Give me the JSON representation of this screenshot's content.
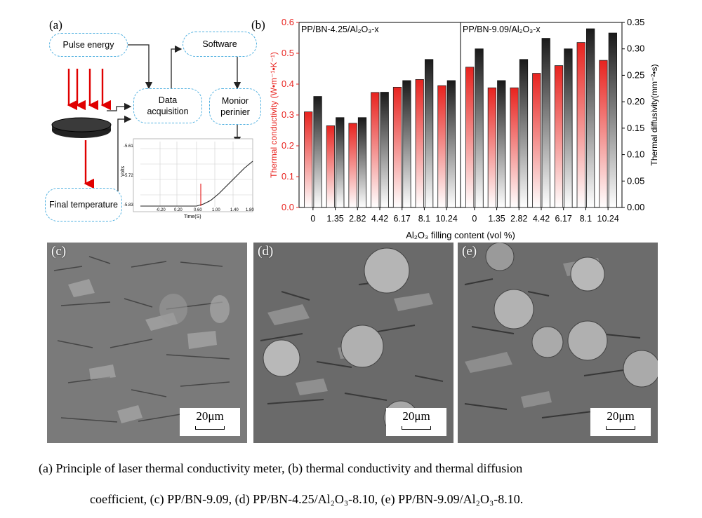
{
  "panel_a": {
    "label": "(a)",
    "boxes": {
      "pulse_energy": "Pulse energy",
      "data_acquisition_1": "Data",
      "data_acquisition_2": "acquisition",
      "software": "Software",
      "monitor_1": "Monior",
      "monitor_2": "perinier",
      "final_temperature": "Final temperature"
    },
    "inset": {
      "ylabel": "Volts",
      "xlabel": "Time(S)",
      "yticks": [
        "-5.61",
        "-5.72",
        "-5.83"
      ],
      "xticks": [
        "-0.20",
        "0.20",
        "0.60",
        "1.00",
        "1.40",
        "1.80"
      ]
    }
  },
  "panel_b": {
    "label": "(b)"
  },
  "chart_data": {
    "type": "bar",
    "groups": [
      "PP/BN-4.25/Al2O3-x",
      "PP/BN-9.09/Al2O3-x"
    ],
    "group_labels": [
      "PP/BN-4.25/Al₂O₃-x",
      "PP/BN-9.09/Al₂O₃-x"
    ],
    "categories": [
      "0",
      "1.35",
      "2.82",
      "4.42",
      "6.17",
      "8.1",
      "10.24"
    ],
    "xlabel": "Al₂O₃ filling content (vol %)",
    "ylabel_left": "Thermal conductivity (W•m⁻¹•K⁻¹)",
    "ylabel_right": "Thermal diffusivity(mm⁻²•s)",
    "ylim_left": [
      0,
      0.6
    ],
    "ylim_right": [
      0,
      0.35
    ],
    "yticks_left": [
      "0.0",
      "0.1",
      "0.2",
      "0.3",
      "0.4",
      "0.5",
      "0.6"
    ],
    "yticks_right": [
      "0.00",
      "0.05",
      "0.10",
      "0.15",
      "0.20",
      "0.25",
      "0.30",
      "0.35"
    ],
    "colors": {
      "conductivity": "#e8231f",
      "diffusivity": "#1a1a1a",
      "left_axis": "#e8231f"
    },
    "series": [
      {
        "group": 0,
        "conductivity": [
          0.31,
          0.265,
          0.273,
          0.373,
          0.39,
          0.415,
          0.395
        ],
        "diffusivity": [
          0.21,
          0.17,
          0.17,
          0.218,
          0.24,
          0.28,
          0.24
        ]
      },
      {
        "group": 1,
        "conductivity": [
          0.455,
          0.388,
          0.388,
          0.435,
          0.46,
          0.535,
          0.477
        ],
        "diffusivity": [
          0.3,
          0.24,
          0.28,
          0.32,
          0.3,
          0.338,
          0.33
        ]
      }
    ]
  },
  "sem": [
    {
      "label": "(c)",
      "scale": "20μm"
    },
    {
      "label": "(d)",
      "scale": "20μm"
    },
    {
      "label": "(e)",
      "scale": "20μm"
    }
  ],
  "caption": {
    "line1": "(a)  Principle of laser thermal conductivity meter, (b) thermal conductivity and thermal diffusion",
    "line2": "coefficient, (c) PP/BN-9.09, (d) PP/BN-4.25/Al₂O₃-8.10, (e) PP/BN-9.09/Al₂O₃-8.10."
  }
}
